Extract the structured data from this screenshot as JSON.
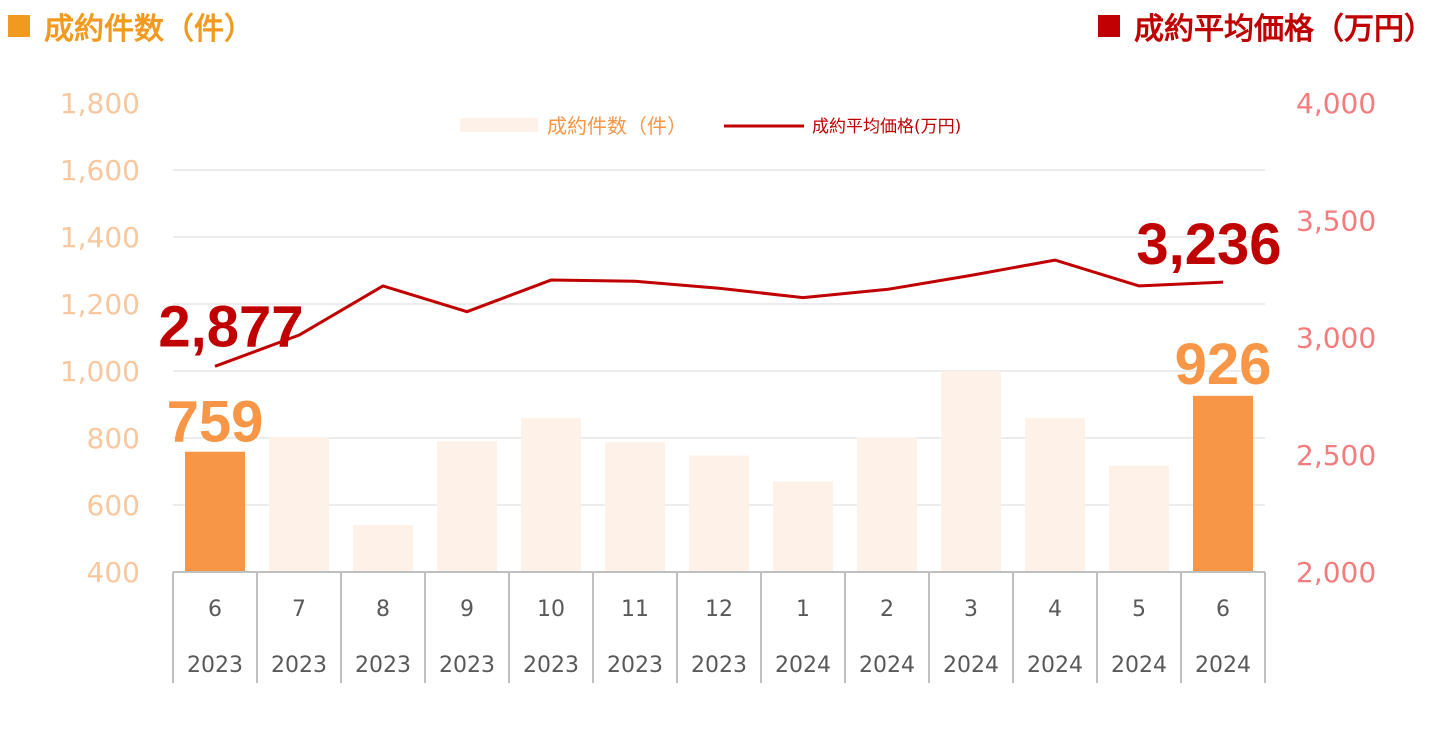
{
  "header": {
    "left_title": "成約件数（件）",
    "right_title": "成約平均価格（万円）"
  },
  "colors": {
    "bar_light": "#fdf1e8",
    "bar_highlight": "#f79646",
    "line": "#c00000",
    "left_axis_text": "#f8c79e",
    "right_axis_text": "#f47c7c",
    "left_header": "#f29a1f",
    "right_header": "#c00000",
    "grid": "#d9d9d9",
    "axis_box": "#bfbfbf"
  },
  "chart_data": {
    "type": "bar+line",
    "legend": {
      "bar_label": "成約件数（件）",
      "line_label": "成約平均価格(万円)",
      "position": "top-center"
    },
    "categories": [
      {
        "month": "6",
        "year": "2023"
      },
      {
        "month": "7",
        "year": "2023"
      },
      {
        "month": "8",
        "year": "2023"
      },
      {
        "month": "9",
        "year": "2023"
      },
      {
        "month": "10",
        "year": "2023"
      },
      {
        "month": "11",
        "year": "2023"
      },
      {
        "month": "12",
        "year": "2023"
      },
      {
        "month": "1",
        "year": "2024"
      },
      {
        "month": "2",
        "year": "2024"
      },
      {
        "month": "3",
        "year": "2024"
      },
      {
        "month": "4",
        "year": "2024"
      },
      {
        "month": "5",
        "year": "2024"
      },
      {
        "month": "6",
        "year": "2024"
      }
    ],
    "bar_series": {
      "values": [
        759,
        803,
        540,
        790,
        860,
        787,
        748,
        670,
        802,
        1000,
        860,
        717,
        926
      ],
      "highlight": [
        true,
        false,
        false,
        false,
        false,
        false,
        false,
        false,
        false,
        false,
        false,
        false,
        true
      ]
    },
    "line_series": {
      "values": [
        2877,
        3010,
        3220,
        3110,
        3245,
        3240,
        3210,
        3170,
        3205,
        3265,
        3330,
        3220,
        3236
      ]
    },
    "left_axis": {
      "min": 400,
      "max": 1800,
      "ticks": [
        "400",
        "600",
        "800",
        "1,000",
        "1,200",
        "1,400",
        "1,600",
        "1,800"
      ]
    },
    "right_axis": {
      "min": 2000,
      "max": 4000,
      "ticks": [
        "2,000",
        "2,500",
        "3,000",
        "3,500",
        "4,000"
      ]
    },
    "grid": true,
    "data_labels": {
      "bar_first": "759",
      "bar_last": "926",
      "line_first": "2,877",
      "line_last": "3,236"
    }
  }
}
